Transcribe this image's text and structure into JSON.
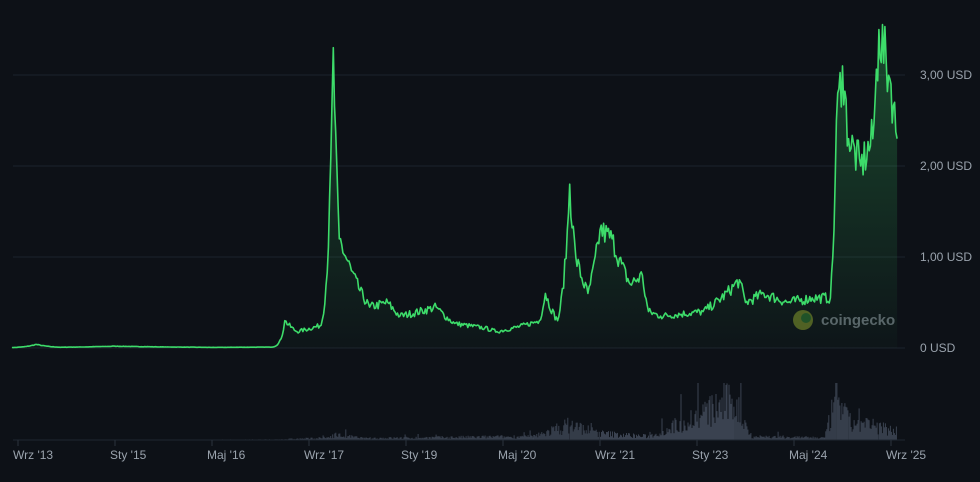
{
  "chart_data": {
    "type": "line",
    "title": "",
    "xlabel": "",
    "ylabel": "",
    "ylim": [
      0,
      3.5
    ],
    "grid": true,
    "legend": "none",
    "y_ticks": [
      {
        "value": 0,
        "label": "0 USD"
      },
      {
        "value": 1,
        "label": "1,00 USD"
      },
      {
        "value": 2,
        "label": "2,00 USD"
      },
      {
        "value": 3,
        "label": "3,00 USD"
      }
    ],
    "x_ticks": [
      {
        "date": "2013-09",
        "label": "Wrz '13"
      },
      {
        "date": "2015-01",
        "label": "Sty '15"
      },
      {
        "date": "2016-05",
        "label": "Maj '16"
      },
      {
        "date": "2017-09",
        "label": "Wrz '17"
      },
      {
        "date": "2019-01",
        "label": "Sty '19"
      },
      {
        "date": "2020-05",
        "label": "Maj '20"
      },
      {
        "date": "2021-09",
        "label": "Wrz '21"
      },
      {
        "date": "2023-01",
        "label": "Sty '23"
      },
      {
        "date": "2024-05",
        "label": "Maj '24"
      },
      {
        "date": "2025-09",
        "label": "Wrz '25"
      }
    ],
    "series": [
      {
        "x": [
          "2013-08",
          "2013-12",
          "2014-04",
          "2015-01",
          "2016-05",
          "2017-03",
          "2017-05",
          "2017-07",
          "2017-11",
          "2018-01",
          "2018-02",
          "2018-04",
          "2018-07",
          "2018-10",
          "2018-12",
          "2019-06",
          "2019-09",
          "2020-02",
          "2020-04",
          "2020-11",
          "2020-12",
          "2021-02",
          "2021-04",
          "2021-05",
          "2021-07",
          "2021-09",
          "2021-11",
          "2022-02",
          "2022-04",
          "2022-05",
          "2022-07",
          "2023-02",
          "2023-08",
          "2023-09",
          "2023-12",
          "2024-04",
          "2024-08",
          "2024-11",
          "2024-12",
          "2025-01",
          "2025-02",
          "2025-04",
          "2025-06",
          "2025-07",
          "2025-09",
          "2025-10"
        ],
        "y": [
          0.005,
          0.04,
          0.008,
          0.02,
          0.007,
          0.01,
          0.3,
          0.18,
          0.25,
          3.3,
          1.2,
          0.85,
          0.45,
          0.5,
          0.35,
          0.45,
          0.27,
          0.22,
          0.18,
          0.3,
          0.6,
          0.3,
          1.8,
          1.0,
          0.6,
          1.3,
          1.2,
          0.7,
          0.8,
          0.4,
          0.35,
          0.4,
          0.75,
          0.5,
          0.6,
          0.5,
          0.55,
          0.55,
          2.5,
          3.1,
          2.3,
          2.0,
          2.3,
          3.5,
          2.9,
          2.3
        ]
      }
    ],
    "volume_relative": {
      "x": [
        "2013-08",
        "2017-03",
        "2017-12",
        "2018-01",
        "2018-06",
        "2020-10",
        "2021-04",
        "2021-09",
        "2022-05",
        "2023-07",
        "2023-10",
        "2024-10",
        "2024-12",
        "2025-02",
        "2025-07",
        "2025-10"
      ],
      "y": [
        0.0,
        0.01,
        0.05,
        0.12,
        0.04,
        0.08,
        0.35,
        0.15,
        0.08,
        0.9,
        0.08,
        0.05,
        1.0,
        0.4,
        0.3,
        0.2
      ]
    },
    "line_color": "#3ddc6a",
    "volume_color": "#3a4250"
  },
  "watermark": {
    "text": "coingecko"
  }
}
